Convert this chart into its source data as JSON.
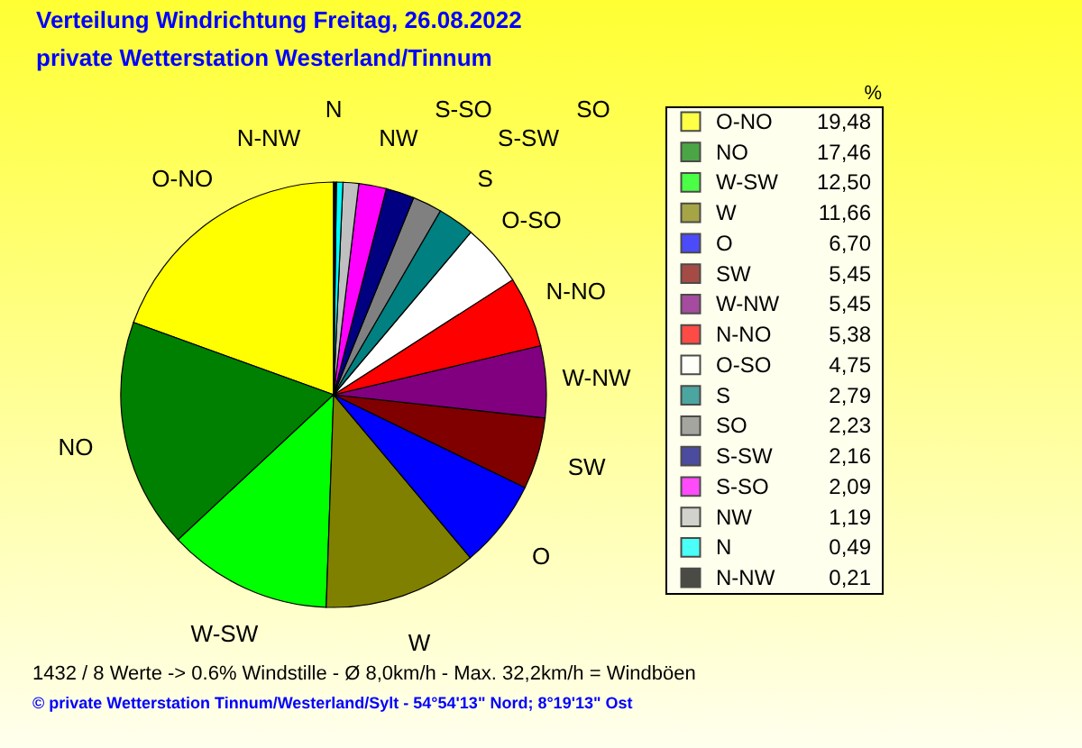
{
  "chart_data": {
    "type": "pie",
    "title": "Verteilung Windrichtung   Freitag, 26.08.2022",
    "subtitle": "private Wetterstation Westerland/Tinnum",
    "categories": [
      "O-NO",
      "NO",
      "W-SW",
      "W",
      "O",
      "SW",
      "W-NW",
      "N-NO",
      "O-SO",
      "S",
      "SO",
      "S-SW",
      "S-SO",
      "NW",
      "N",
      "N-NW"
    ],
    "values": [
      19.48,
      17.46,
      12.5,
      11.66,
      6.7,
      5.45,
      5.45,
      5.38,
      4.75,
      2.79,
      2.23,
      2.16,
      2.09,
      1.19,
      0.49,
      0.21
    ],
    "colors": [
      "#ffff00",
      "#008000",
      "#00ff00",
      "#808000",
      "#0000ff",
      "#800000",
      "#800080",
      "#ff0000",
      "#ffffff",
      "#008080",
      "#808080",
      "#000080",
      "#ff00ff",
      "#c0c0c0",
      "#00ffff",
      "#000000"
    ],
    "value_labels": [
      "19,48",
      "17,46",
      "12,50",
      "11,66",
      "6,70",
      "5,45",
      "5,45",
      "5,38",
      "4,75",
      "2,79",
      "2,23",
      "2,16",
      "2,09",
      "1,19",
      "0,49",
      "0,21"
    ],
    "legend": "right",
    "legend_title": "%",
    "annotations": [
      "1432 / 8 Werte  -> 0.6% Windstille   -   Ø 8,0km/h  -  Max. 32,2km/h = Windböen",
      "© private Wetterstation Tinnum/Westerland/Sylt  -  54°54'13\" Nord; 8°19'13\" Ost"
    ]
  }
}
